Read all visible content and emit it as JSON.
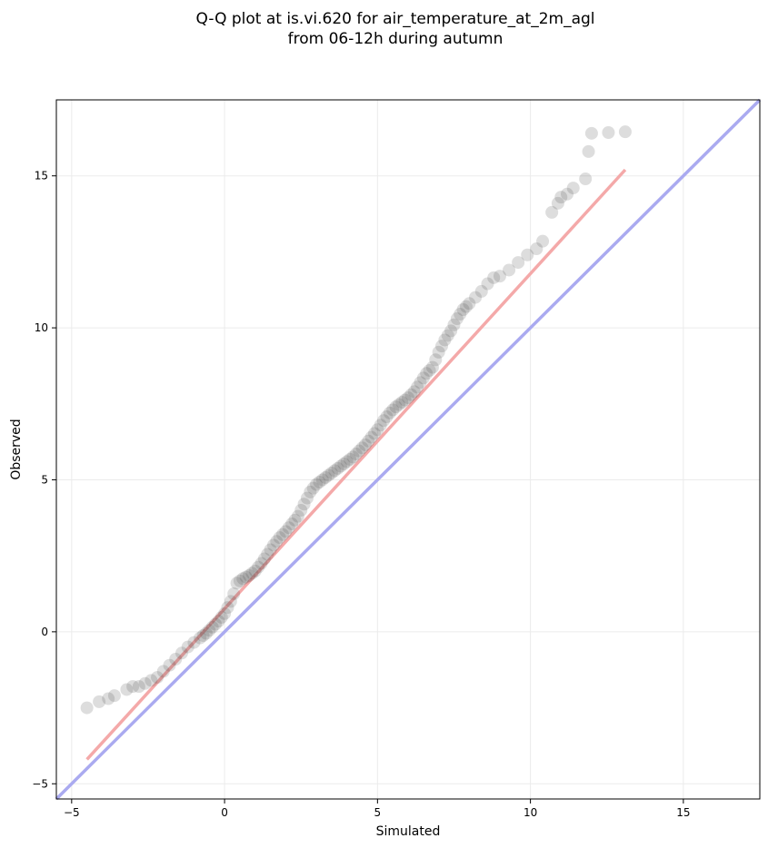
{
  "chart_data": {
    "type": "scatter",
    "title_lines": [
      "Q-Q plot at is.vi.620 for air_temperature_at_2m_agl",
      "from 06-12h during autumn"
    ],
    "xlabel": "Simulated",
    "ylabel": "Observed",
    "xlim": [
      -5.5,
      17.5
    ],
    "ylim": [
      -5.5,
      17.5
    ],
    "xticks": [
      -5,
      0,
      5,
      10,
      15
    ],
    "yticks": [
      -5,
      0,
      5,
      10,
      15
    ],
    "grid": true,
    "identity_line": {
      "from": [
        -5.5,
        -5.5
      ],
      "to": [
        17.5,
        17.5
      ],
      "color": "#aaaaf0"
    },
    "fit_line": {
      "from": [
        -4.5,
        -4.2
      ],
      "to": [
        13.1,
        15.2
      ],
      "color": "#f4a9a9"
    },
    "point_color": "#444444",
    "quantiles": {
      "x": [
        -4.5,
        -4.1,
        -3.8,
        -3.6,
        -3.2,
        -3.0,
        -2.8,
        -2.6,
        -2.4,
        -2.2,
        -2.0,
        -1.8,
        -1.6,
        -1.4,
        -1.2,
        -1.0,
        -0.8,
        -0.6,
        -0.4,
        -0.2,
        0.0,
        0.1,
        0.2,
        0.3,
        0.4,
        0.6,
        0.8,
        1.0,
        1.2,
        1.4,
        1.6,
        1.8,
        2.0,
        2.2,
        2.4,
        2.6,
        2.8,
        3.0,
        3.2,
        3.4,
        3.6,
        3.8,
        4.0,
        4.2,
        4.4,
        4.6,
        4.8,
        5.0,
        5.2,
        5.4,
        5.6,
        5.8,
        6.0,
        6.2,
        6.4,
        6.6,
        6.8,
        7.0,
        7.2,
        7.4,
        7.6,
        7.8,
        8.0,
        8.2,
        8.4,
        8.6,
        8.8,
        9.0,
        9.3,
        9.6,
        9.9,
        10.2,
        10.4,
        10.7,
        10.9,
        11.0,
        11.2,
        11.4,
        11.8,
        11.9,
        12.0,
        13.1
      ],
      "y": [
        -2.5,
        -2.3,
        -2.2,
        -2.1,
        -1.9,
        -1.8,
        -1.8,
        -1.7,
        -1.6,
        -1.5,
        -1.3,
        -1.1,
        -0.9,
        -0.7,
        -0.5,
        -0.35,
        -0.2,
        -0.05,
        0.15,
        0.35,
        0.6,
        0.8,
        1.0,
        1.25,
        1.6,
        1.75,
        1.85,
        2.0,
        2.25,
        2.55,
        2.85,
        3.1,
        3.3,
        3.55,
        3.8,
        4.2,
        4.6,
        4.85,
        5.0,
        5.15,
        5.3,
        5.45,
        5.6,
        5.75,
        5.95,
        6.15,
        6.4,
        6.65,
        6.95,
        7.2,
        7.4,
        7.55,
        7.7,
        7.9,
        8.2,
        8.5,
        8.7,
        9.2,
        9.6,
        9.9,
        10.3,
        10.6,
        10.8,
        11.0,
        11.2,
        11.45,
        11.65,
        11.7,
        11.9,
        12.15,
        12.4,
        12.6,
        12.85,
        13.8,
        14.1,
        14.3,
        14.4,
        14.6,
        14.9,
        15.8,
        16.4,
        16.45
      ]
    }
  }
}
